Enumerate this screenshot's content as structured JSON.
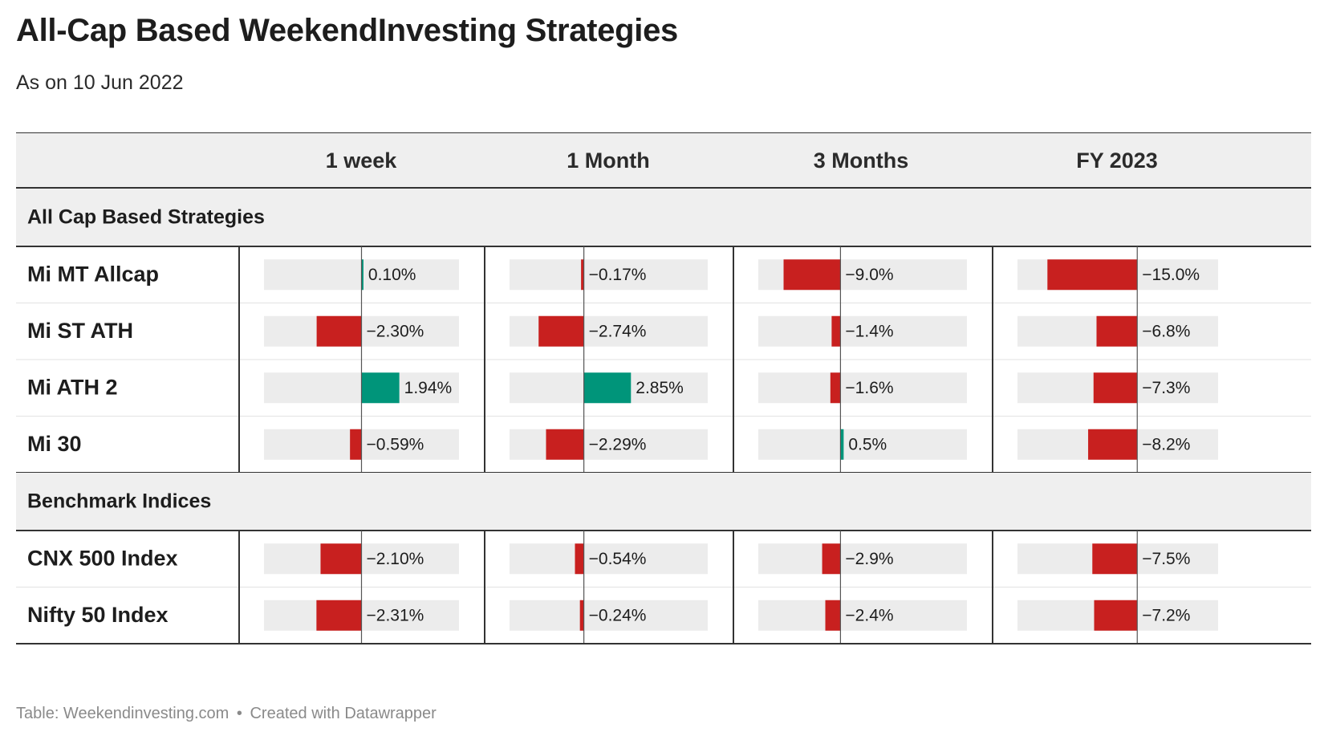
{
  "header": {
    "title": "All-Cap Based WeekendInvesting Strategies",
    "subtitle": "As on 10 Jun 2022"
  },
  "footer": {
    "source": "Table: Weekendinvesting.com",
    "separator": "•",
    "credit": "Created with Datawrapper"
  },
  "colors": {
    "positive": "#00957a",
    "negative": "#c8201f",
    "bar_track": "#ececec",
    "header_band": "#efefef",
    "rule": "#333333",
    "row_divider": "#e2e2e2"
  },
  "chart_data": {
    "type": "table",
    "columns": [
      "1 week",
      "1 Month",
      "3 Months",
      "FY 2023"
    ],
    "column_ranges": [
      {
        "min": -5.0,
        "max": 5.0
      },
      {
        "min": -4.5,
        "max": 7.5
      },
      {
        "min": -13.0,
        "max": 20.0
      },
      {
        "min": -20.0,
        "max": 13.5
      }
    ],
    "groups": [
      {
        "name": "All Cap Based Strategies",
        "rows": [
          {
            "label": "Mi MT Allcap",
            "values": [
              0.1,
              -0.17,
              -9.0,
              -15.0
            ],
            "display": [
              "0.10%",
              "−0.17%",
              "−9.0%",
              "−15.0%"
            ]
          },
          {
            "label": "Mi ST ATH",
            "values": [
              -2.3,
              -2.74,
              -1.4,
              -6.8
            ],
            "display": [
              "−2.30%",
              "−2.74%",
              "−1.4%",
              "−6.8%"
            ]
          },
          {
            "label": "Mi ATH 2",
            "values": [
              1.94,
              2.85,
              -1.6,
              -7.3
            ],
            "display": [
              "1.94%",
              "2.85%",
              "−1.6%",
              "−7.3%"
            ]
          },
          {
            "label": "Mi 30",
            "values": [
              -0.59,
              -2.29,
              0.5,
              -8.2
            ],
            "display": [
              "−0.59%",
              "−2.29%",
              "0.5%",
              "−8.2%"
            ]
          }
        ]
      },
      {
        "name": "Benchmark Indices",
        "rows": [
          {
            "label": "CNX 500 Index",
            "values": [
              -2.1,
              -0.54,
              -2.9,
              -7.5
            ],
            "display": [
              "−2.10%",
              "−0.54%",
              "−2.9%",
              "−7.5%"
            ]
          },
          {
            "label": "Nifty 50 Index",
            "values": [
              -2.31,
              -0.24,
              -2.4,
              -7.2
            ],
            "display": [
              "−2.31%",
              "−0.24%",
              "−2.4%",
              "−7.2%"
            ]
          }
        ]
      }
    ]
  }
}
